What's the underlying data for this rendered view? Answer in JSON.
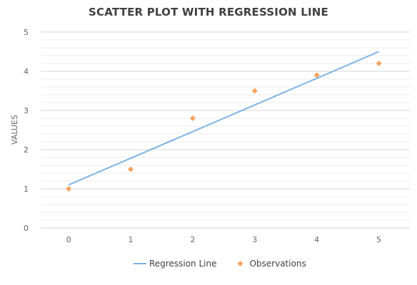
{
  "chart_data": {
    "type": "scatter",
    "title": "SCATTER PLOT WITH REGRESSION LINE",
    "xlabel": "",
    "ylabel": "VALUES",
    "x_ticks": [
      "0",
      "1",
      "2",
      "3",
      "4",
      "5"
    ],
    "y_ticks": [
      "0",
      "1",
      "2",
      "3",
      "4",
      "5"
    ],
    "xlim": [
      -0.45,
      5.5
    ],
    "ylim": [
      0,
      5
    ],
    "minor_gridlines_per_major": 5,
    "grid": true,
    "legend_position": "bottom",
    "series": [
      {
        "name": "Regression Line",
        "type": "line",
        "color": "#7FB2E5",
        "x": [
          0,
          5
        ],
        "y": [
          1.1,
          4.5
        ]
      },
      {
        "name": "Observations",
        "type": "scatter",
        "marker": "diamond",
        "color": "#F4A460",
        "x": [
          0,
          1,
          2,
          3,
          4,
          5
        ],
        "y": [
          1.0,
          1.5,
          2.8,
          3.5,
          3.9,
          4.2
        ]
      }
    ]
  }
}
